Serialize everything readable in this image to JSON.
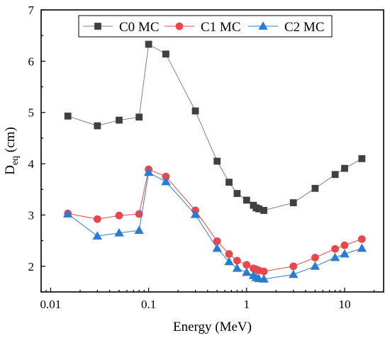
{
  "chart_data": {
    "type": "line",
    "xlabel": "Energy (MeV)",
    "ylabel_main": "D",
    "ylabel_sub": "eq",
    "ylabel_unit": " (cm)",
    "xscale": "log",
    "xlim": [
      0.008,
      25
    ],
    "ylim": [
      1.5,
      7
    ],
    "xticks": [
      0.01,
      0.1,
      1,
      10
    ],
    "xtick_labels": [
      "0.01",
      "0.1",
      "1",
      "10"
    ],
    "yticks": [
      2,
      3,
      4,
      5,
      6,
      7
    ],
    "ytick_labels": [
      "2",
      "3",
      "4",
      "5",
      "6",
      "7"
    ],
    "grid": false,
    "legend_position": "top",
    "series": [
      {
        "name": "C0 MC",
        "color": "#404040",
        "line_color": "#808080",
        "marker": "square",
        "x": [
          0.015,
          0.03,
          0.05,
          0.08,
          0.1,
          0.15,
          0.3,
          0.5,
          0.662,
          0.8,
          1.0,
          1.173,
          1.25,
          1.332,
          1.5,
          3,
          5,
          8,
          10,
          15
        ],
        "y": [
          4.93,
          4.74,
          4.85,
          4.91,
          6.33,
          6.14,
          5.03,
          4.05,
          3.64,
          3.42,
          3.29,
          3.19,
          3.14,
          3.12,
          3.09,
          3.24,
          3.52,
          3.79,
          3.91,
          4.1
        ]
      },
      {
        "name": "C1 MC",
        "color": "#e8474c",
        "line_color": "#e8474c",
        "marker": "circle",
        "x": [
          0.015,
          0.03,
          0.05,
          0.08,
          0.1,
          0.15,
          0.3,
          0.5,
          0.662,
          0.8,
          1.0,
          1.173,
          1.25,
          1.332,
          1.5,
          3,
          5,
          8,
          10,
          15
        ],
        "y": [
          3.03,
          2.92,
          2.99,
          3.02,
          3.89,
          3.75,
          3.09,
          2.49,
          2.24,
          2.11,
          2.03,
          1.96,
          1.94,
          1.92,
          1.9,
          2.0,
          2.17,
          2.34,
          2.41,
          2.53
        ]
      },
      {
        "name": "C2 MC",
        "color": "#2b7bd1",
        "line_color": "#2b7bd1",
        "marker": "triangle",
        "x": [
          0.015,
          0.03,
          0.05,
          0.08,
          0.1,
          0.15,
          0.3,
          0.5,
          0.662,
          0.8,
          1.0,
          1.173,
          1.25,
          1.332,
          1.5,
          3,
          5,
          8,
          10,
          15
        ],
        "y": [
          3.02,
          2.59,
          2.65,
          2.7,
          3.83,
          3.65,
          3.01,
          2.35,
          2.09,
          1.96,
          1.88,
          1.82,
          1.78,
          1.76,
          1.75,
          1.84,
          2.0,
          2.17,
          2.24,
          2.35
        ]
      }
    ]
  }
}
